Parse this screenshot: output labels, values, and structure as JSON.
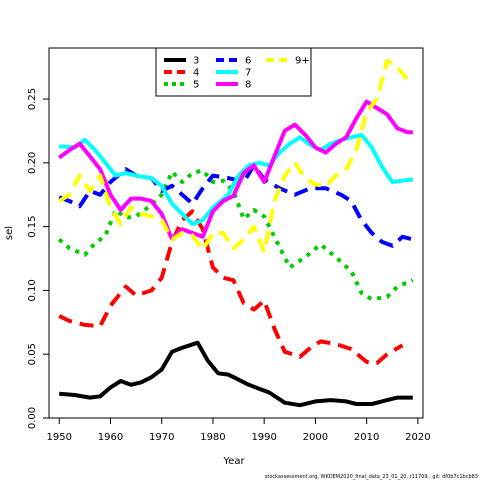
{
  "chart_data": {
    "type": "line",
    "title": "",
    "xlabel": "Year",
    "ylabel": "sel",
    "xlim": [
      1948,
      2021
    ],
    "ylim": [
      0,
      0.29
    ],
    "x_ticks": [
      1950,
      1960,
      1970,
      1980,
      1990,
      2000,
      2010,
      2020
    ],
    "y_ticks": [
      0.0,
      0.05,
      0.1,
      0.15,
      0.2,
      0.25
    ],
    "y_tick_labels": [
      "0.00",
      "0.05",
      "0.10",
      "0.15",
      "0.20",
      "0.25"
    ],
    "legend": {
      "placement": "top-center",
      "columns": 3
    },
    "grid": false,
    "footer": "stockassessment.org, WKDEM2020_final_data_23_01_20, r11709 , git: df0b7c1bcb83",
    "series": [
      {
        "name": "3",
        "color": "#000000",
        "dash": "solid",
        "points": [
          [
            1950,
            0.019
          ],
          [
            1953,
            0.018
          ],
          [
            1956,
            0.016
          ],
          [
            1958,
            0.017
          ],
          [
            1960,
            0.024
          ],
          [
            1962,
            0.029
          ],
          [
            1964,
            0.026
          ],
          [
            1966,
            0.028
          ],
          [
            1968,
            0.032
          ],
          [
            1970,
            0.038
          ],
          [
            1972,
            0.052
          ],
          [
            1974,
            0.055
          ],
          [
            1977,
            0.059
          ],
          [
            1979,
            0.045
          ],
          [
            1981,
            0.035
          ],
          [
            1983,
            0.034
          ],
          [
            1985,
            0.03
          ],
          [
            1987,
            0.026
          ],
          [
            1989,
            0.023
          ],
          [
            1991,
            0.02
          ],
          [
            1994,
            0.012
          ],
          [
            1997,
            0.01
          ],
          [
            2000,
            0.013
          ],
          [
            2003,
            0.014
          ],
          [
            2006,
            0.013
          ],
          [
            2008,
            0.011
          ],
          [
            2011,
            0.011
          ],
          [
            2014,
            0.014
          ],
          [
            2016,
            0.016
          ],
          [
            2019,
            0.016
          ]
        ]
      },
      {
        "name": "4",
        "color": "#ff0000",
        "dash": "dash",
        "points": [
          [
            1950,
            0.08
          ],
          [
            1952,
            0.076
          ],
          [
            1955,
            0.073
          ],
          [
            1958,
            0.072
          ],
          [
            1960,
            0.088
          ],
          [
            1963,
            0.103
          ],
          [
            1965,
            0.096
          ],
          [
            1968,
            0.1
          ],
          [
            1970,
            0.11
          ],
          [
            1972,
            0.138
          ],
          [
            1974,
            0.155
          ],
          [
            1976,
            0.162
          ],
          [
            1978,
            0.148
          ],
          [
            1980,
            0.118
          ],
          [
            1982,
            0.11
          ],
          [
            1984,
            0.108
          ],
          [
            1986,
            0.09
          ],
          [
            1988,
            0.085
          ],
          [
            1990,
            0.092
          ],
          [
            1992,
            0.07
          ],
          [
            1994,
            0.052
          ],
          [
            1997,
            0.048
          ],
          [
            1999,
            0.055
          ],
          [
            2001,
            0.06
          ],
          [
            2004,
            0.058
          ],
          [
            2007,
            0.054
          ],
          [
            2010,
            0.044
          ],
          [
            2012,
            0.043
          ],
          [
            2014,
            0.05
          ],
          [
            2017,
            0.057
          ]
        ]
      },
      {
        "name": "5",
        "color": "#00cd00",
        "dash": "dot",
        "points": [
          [
            1950,
            0.14
          ],
          [
            1952,
            0.133
          ],
          [
            1955,
            0.128
          ],
          [
            1957,
            0.137
          ],
          [
            1959,
            0.143
          ],
          [
            1961,
            0.163
          ],
          [
            1963,
            0.157
          ],
          [
            1965,
            0.158
          ],
          [
            1968,
            0.167
          ],
          [
            1970,
            0.175
          ],
          [
            1972,
            0.193
          ],
          [
            1974,
            0.185
          ],
          [
            1976,
            0.192
          ],
          [
            1978,
            0.194
          ],
          [
            1980,
            0.185
          ],
          [
            1982,
            0.186
          ],
          [
            1984,
            0.178
          ],
          [
            1986,
            0.156
          ],
          [
            1988,
            0.163
          ],
          [
            1990,
            0.158
          ],
          [
            1992,
            0.142
          ],
          [
            1995,
            0.118
          ],
          [
            1998,
            0.126
          ],
          [
            2001,
            0.136
          ],
          [
            2004,
            0.126
          ],
          [
            2007,
            0.115
          ],
          [
            2009,
            0.098
          ],
          [
            2011,
            0.093
          ],
          [
            2014,
            0.095
          ],
          [
            2016,
            0.103
          ],
          [
            2019,
            0.108
          ]
        ]
      },
      {
        "name": "6",
        "color": "#0000ff",
        "dash": "dash",
        "points": [
          [
            1950,
            0.173
          ],
          [
            1952,
            0.17
          ],
          [
            1954,
            0.166
          ],
          [
            1956,
            0.178
          ],
          [
            1958,
            0.175
          ],
          [
            1960,
            0.185
          ],
          [
            1963,
            0.195
          ],
          [
            1965,
            0.19
          ],
          [
            1968,
            0.188
          ],
          [
            1970,
            0.178
          ],
          [
            1972,
            0.182
          ],
          [
            1974,
            0.175
          ],
          [
            1976,
            0.168
          ],
          [
            1978,
            0.18
          ],
          [
            1980,
            0.19
          ],
          [
            1983,
            0.188
          ],
          [
            1986,
            0.185
          ],
          [
            1988,
            0.198
          ],
          [
            1990,
            0.187
          ],
          [
            1993,
            0.18
          ],
          [
            1996,
            0.175
          ],
          [
            1999,
            0.18
          ],
          [
            2002,
            0.18
          ],
          [
            2005,
            0.175
          ],
          [
            2007,
            0.17
          ],
          [
            2009,
            0.155
          ],
          [
            2011,
            0.145
          ],
          [
            2013,
            0.138
          ],
          [
            2015,
            0.135
          ],
          [
            2017,
            0.142
          ],
          [
            2019,
            0.14
          ]
        ]
      },
      {
        "name": "7",
        "color": "#00ffff",
        "dash": "solid",
        "points": [
          [
            1950,
            0.213
          ],
          [
            1953,
            0.212
          ],
          [
            1955,
            0.218
          ],
          [
            1957,
            0.21
          ],
          [
            1959,
            0.2
          ],
          [
            1961,
            0.19
          ],
          [
            1963,
            0.192
          ],
          [
            1965,
            0.19
          ],
          [
            1968,
            0.188
          ],
          [
            1970,
            0.182
          ],
          [
            1972,
            0.168
          ],
          [
            1974,
            0.16
          ],
          [
            1976,
            0.152
          ],
          [
            1978,
            0.155
          ],
          [
            1980,
            0.165
          ],
          [
            1983,
            0.175
          ],
          [
            1985,
            0.19
          ],
          [
            1987,
            0.198
          ],
          [
            1989,
            0.2
          ],
          [
            1991,
            0.198
          ],
          [
            1993,
            0.208
          ],
          [
            1995,
            0.215
          ],
          [
            1997,
            0.22
          ],
          [
            1999,
            0.214
          ],
          [
            2001,
            0.21
          ],
          [
            2003,
            0.215
          ],
          [
            2005,
            0.218
          ],
          [
            2007,
            0.22
          ],
          [
            2009,
            0.222
          ],
          [
            2011,
            0.212
          ],
          [
            2013,
            0.197
          ],
          [
            2015,
            0.185
          ],
          [
            2017,
            0.186
          ],
          [
            2019,
            0.187
          ]
        ]
      },
      {
        "name": "8",
        "color": "#ff00ff",
        "dash": "solid",
        "points": [
          [
            1950,
            0.204
          ],
          [
            1952,
            0.21
          ],
          [
            1954,
            0.215
          ],
          [
            1956,
            0.205
          ],
          [
            1958,
            0.195
          ],
          [
            1960,
            0.175
          ],
          [
            1962,
            0.163
          ],
          [
            1964,
            0.172
          ],
          [
            1966,
            0.172
          ],
          [
            1968,
            0.17
          ],
          [
            1970,
            0.16
          ],
          [
            1972,
            0.14
          ],
          [
            1974,
            0.148
          ],
          [
            1976,
            0.145
          ],
          [
            1978,
            0.142
          ],
          [
            1980,
            0.162
          ],
          [
            1982,
            0.17
          ],
          [
            1984,
            0.174
          ],
          [
            1986,
            0.192
          ],
          [
            1988,
            0.198
          ],
          [
            1990,
            0.185
          ],
          [
            1992,
            0.205
          ],
          [
            1994,
            0.225
          ],
          [
            1996,
            0.23
          ],
          [
            1998,
            0.222
          ],
          [
            2000,
            0.212
          ],
          [
            2002,
            0.208
          ],
          [
            2004,
            0.215
          ],
          [
            2006,
            0.22
          ],
          [
            2008,
            0.235
          ],
          [
            2010,
            0.248
          ],
          [
            2012,
            0.243
          ],
          [
            2014,
            0.238
          ],
          [
            2016,
            0.227
          ],
          [
            2018,
            0.224
          ],
          [
            2019,
            0.224
          ]
        ]
      },
      {
        "name": "9+",
        "color": "#ffff00",
        "dash": "dash",
        "points": [
          [
            1950,
            0.17
          ],
          [
            1952,
            0.175
          ],
          [
            1954,
            0.19
          ],
          [
            1956,
            0.178
          ],
          [
            1958,
            0.19
          ],
          [
            1960,
            0.165
          ],
          [
            1962,
            0.152
          ],
          [
            1964,
            0.165
          ],
          [
            1966,
            0.16
          ],
          [
            1968,
            0.158
          ],
          [
            1970,
            0.155
          ],
          [
            1972,
            0.14
          ],
          [
            1974,
            0.145
          ],
          [
            1976,
            0.143
          ],
          [
            1978,
            0.132
          ],
          [
            1980,
            0.145
          ],
          [
            1982,
            0.145
          ],
          [
            1984,
            0.133
          ],
          [
            1986,
            0.14
          ],
          [
            1988,
            0.15
          ],
          [
            1990,
            0.13
          ],
          [
            1992,
            0.17
          ],
          [
            1994,
            0.19
          ],
          [
            1996,
            0.2
          ],
          [
            1998,
            0.188
          ],
          [
            2000,
            0.183
          ],
          [
            2002,
            0.182
          ],
          [
            2004,
            0.19
          ],
          [
            2006,
            0.195
          ],
          [
            2008,
            0.21
          ],
          [
            2010,
            0.24
          ],
          [
            2012,
            0.25
          ],
          [
            2014,
            0.28
          ],
          [
            2016,
            0.275
          ],
          [
            2018,
            0.265
          ],
          [
            2019,
            0.265
          ]
        ]
      }
    ]
  }
}
